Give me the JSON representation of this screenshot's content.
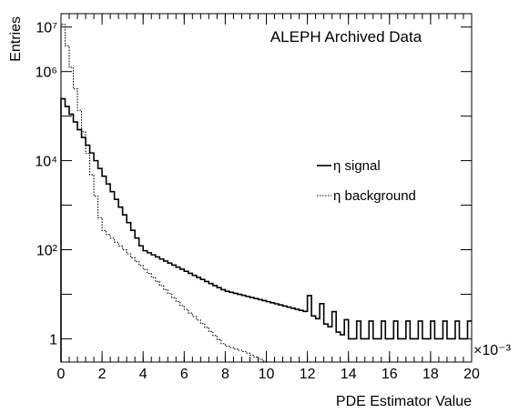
{
  "chart_data": {
    "type": "line",
    "title": "",
    "annotation": "ALEPH Archived Data",
    "xlabel": "PDE Estimator Value",
    "ylabel": "Entries",
    "x_multiplier": "×10⁻³",
    "xlim": [
      0,
      20
    ],
    "ylim": [
      0.3,
      20000000
    ],
    "yscale": "log",
    "x_ticks": [
      "0",
      "2",
      "4",
      "6",
      "8",
      "10",
      "12",
      "14",
      "16",
      "18",
      "20"
    ],
    "y_ticks": [
      {
        "value": 1,
        "label": "1"
      },
      {
        "value": 100,
        "label": "10²"
      },
      {
        "value": 10000,
        "label": "10⁴"
      },
      {
        "value": 1000000,
        "label": "10⁶"
      },
      {
        "value": 10000000,
        "label": "10⁷"
      }
    ],
    "legend_position": "right-middle",
    "bin_width": 0.2,
    "series": [
      {
        "name": "η signal",
        "style": "solid",
        "x": [
          0,
          4,
          8,
          10,
          12,
          14,
          16,
          18,
          20
        ],
        "y": [
          300000,
          100,
          12,
          7,
          4,
          1,
          1,
          1,
          1
        ]
      },
      {
        "name": "η background",
        "style": "dotted",
        "x": [
          0,
          2,
          4,
          6,
          7,
          8,
          9,
          10,
          11,
          12
        ],
        "y": [
          20000000,
          300,
          40,
          5,
          2,
          0.7,
          0.5,
          0.3,
          0.3,
          0.3
        ]
      }
    ]
  }
}
